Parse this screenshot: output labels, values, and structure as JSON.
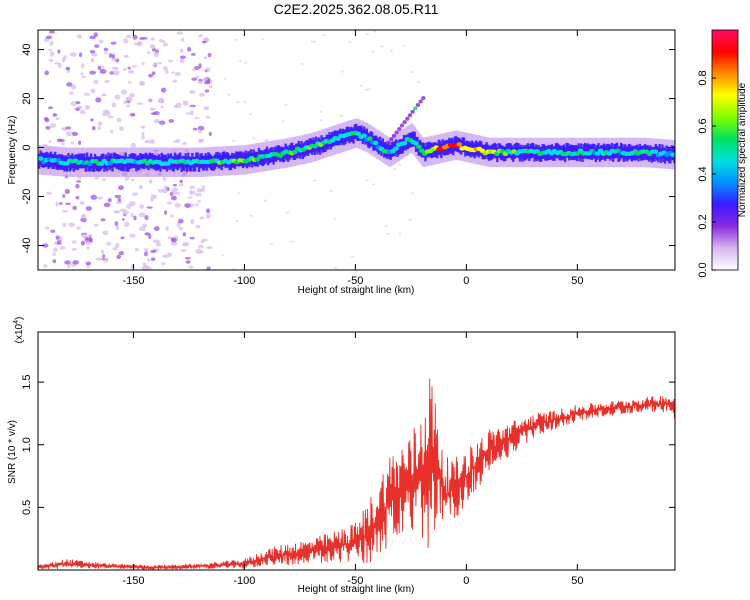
{
  "title": "C2E2.2025.362.08.05.R11",
  "chart_data": [
    {
      "type": "heatmap",
      "xlabel": "Height of straight line (km)",
      "ylabel": "Frequency (Hz)",
      "xlim": [
        -193,
        94
      ],
      "ylim": [
        -50,
        48
      ],
      "xticks": [
        -150,
        -100,
        -50,
        0,
        50
      ],
      "yticks": [
        -40,
        -20,
        0,
        20,
        40
      ],
      "colorbar": {
        "label": "Normalized spectral amplitude",
        "range": [
          0,
          1
        ],
        "ticks": [
          "0.0",
          "0.2",
          "0.4",
          "0.6",
          "0.8"
        ],
        "colors": [
          "#ffffff",
          "#d8b8f0",
          "#8a2be2",
          "#3a1aff",
          "#0090ff",
          "#00e0e0",
          "#00e060",
          "#80ff00",
          "#ffff00",
          "#ff8c00",
          "#ff0000",
          "#ff1060"
        ]
      },
      "ridge": {
        "x": [
          -193,
          -180,
          -160,
          -140,
          -120,
          -100,
          -80,
          -70,
          -60,
          -50,
          -45,
          -40,
          -35,
          -30,
          -25,
          -20,
          -15,
          -10,
          -5,
          0,
          10,
          20,
          40,
          60,
          80,
          94
        ],
        "freq": [
          -5,
          -6,
          -6,
          -6,
          -6,
          -5,
          -2,
          0,
          3,
          6,
          4,
          1,
          -2,
          1,
          4,
          -2,
          -1,
          0,
          1,
          0,
          -2,
          -2,
          -2,
          -2,
          -2,
          -3
        ],
        "amplitude": [
          0.45,
          0.5,
          0.5,
          0.5,
          0.55,
          0.6,
          0.65,
          0.6,
          0.55,
          0.55,
          0.5,
          0.5,
          0.5,
          0.55,
          0.5,
          0.6,
          0.7,
          0.95,
          0.9,
          0.85,
          0.75,
          0.6,
          0.55,
          0.5,
          0.55,
          0.4
        ]
      }
    },
    {
      "type": "line",
      "xlabel": "Height of straight line (km)",
      "ylabel": "SNR (10 * v/v)",
      "yexponent_label": "(x10",
      "yexponent_power": "4",
      "xlim": [
        -193,
        94
      ],
      "ylim": [
        0,
        1.9
      ],
      "xticks": [
        -150,
        -100,
        -50,
        0,
        50
      ],
      "yticks": [
        0.5,
        1.0,
        1.5
      ],
      "color": "#e8302a",
      "series": [
        {
          "name": "SNR",
          "x": [
            -193,
            -180,
            -160,
            -140,
            -120,
            -100,
            -90,
            -80,
            -70,
            -60,
            -50,
            -45,
            -40,
            -35,
            -30,
            -25,
            -20,
            -17,
            -15,
            -12,
            -10,
            -5,
            0,
            10,
            20,
            30,
            40,
            50,
            60,
            70,
            80,
            90,
            94
          ],
          "mean": [
            0.02,
            0.05,
            0.03,
            0.02,
            0.03,
            0.05,
            0.1,
            0.13,
            0.15,
            0.18,
            0.22,
            0.28,
            0.4,
            0.55,
            0.62,
            0.65,
            0.75,
            0.95,
            0.85,
            0.75,
            0.6,
            0.65,
            0.75,
            0.95,
            1.05,
            1.15,
            1.2,
            1.25,
            1.28,
            1.3,
            1.32,
            1.33,
            1.3
          ],
          "spread": [
            0.02,
            0.04,
            0.02,
            0.02,
            0.02,
            0.04,
            0.07,
            0.09,
            0.1,
            0.13,
            0.16,
            0.25,
            0.3,
            0.38,
            0.4,
            0.45,
            0.55,
            0.8,
            0.6,
            0.5,
            0.3,
            0.25,
            0.22,
            0.18,
            0.14,
            0.1,
            0.08,
            0.07,
            0.06,
            0.06,
            0.06,
            0.07,
            0.1
          ]
        }
      ]
    }
  ]
}
